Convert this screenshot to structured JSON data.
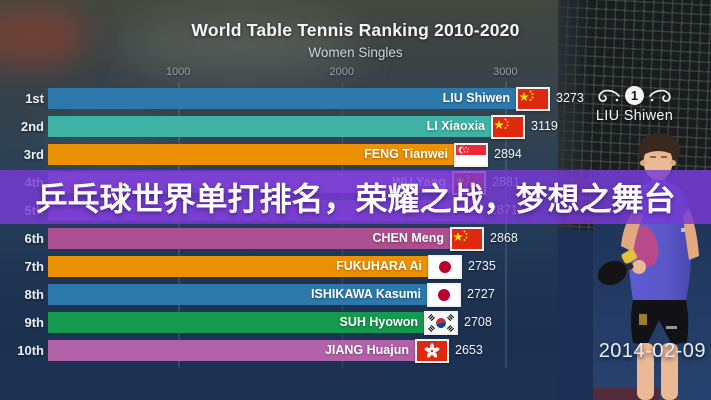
{
  "overlay_text": "乒乓球世界单打排名，荣耀之战，梦想之舞台",
  "side_panel": {
    "medal_rank": "1",
    "leader_name": "LIU Shiwen",
    "date": "2014-02-09"
  },
  "colors": {
    "overlay_purple": "#7a3cd6",
    "background_navy": "#1d3252"
  },
  "chart_data": {
    "type": "bar",
    "orientation": "horizontal",
    "title": "World Table Tennis Ranking 2010-2020",
    "subtitle": "Women Singles",
    "x_ticks": [
      1000,
      2000,
      3000
    ],
    "legend": "none",
    "grid": "vertical",
    "rows": [
      {
        "rank": "1st",
        "name": "LIU Shiwen",
        "country": "CHN",
        "value": 3273,
        "color": "#2d79ab"
      },
      {
        "rank": "2nd",
        "name": "LI Xiaoxia",
        "country": "CHN",
        "value": 3119,
        "color": "#3fb3a4"
      },
      {
        "rank": "3rd",
        "name": "FENG Tianwei",
        "country": "SGP",
        "value": 2894,
        "color": "#ec9104"
      },
      {
        "rank": "4th",
        "name": "WU Yang",
        "country": "CHN",
        "value": 2881,
        "color": "#8d5ec0"
      },
      {
        "rank": "5th",
        "name": "",
        "country": "",
        "value": 2871,
        "color": "#7e57b5"
      },
      {
        "rank": "6th",
        "name": "CHEN Meng",
        "country": "CHN",
        "value": 2868,
        "color": "#ab4f90"
      },
      {
        "rank": "7th",
        "name": "FUKUHARA Ai",
        "country": "JPN",
        "value": 2735,
        "color": "#ec9104"
      },
      {
        "rank": "8th",
        "name": "ISHIKAWA Kasumi",
        "country": "JPN",
        "value": 2727,
        "color": "#2d79ab"
      },
      {
        "rank": "9th",
        "name": "SUH Hyowon",
        "country": "KOR",
        "value": 2708,
        "color": "#14994e"
      },
      {
        "rank": "10th",
        "name": "JIANG Huajun",
        "country": "HKG",
        "value": 2653,
        "color": "#b161a8"
      }
    ]
  }
}
